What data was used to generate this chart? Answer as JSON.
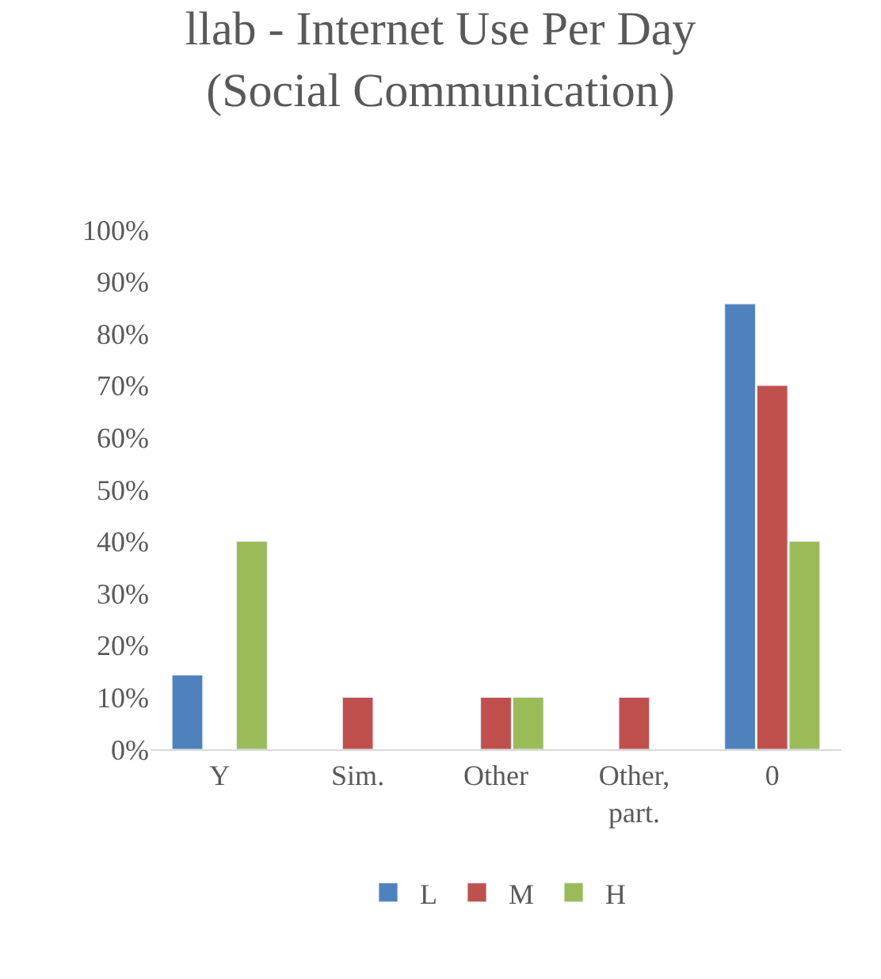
{
  "chart_data": {
    "type": "bar",
    "title": "llab - Internet Use Per Day\n(Social Communication)",
    "categories": [
      "Y",
      "Sim.",
      "Other",
      "Other,\npart.",
      "0"
    ],
    "series": [
      {
        "name": "L",
        "color": "#4f81bd",
        "values": [
          14.3,
          null,
          null,
          null,
          85.7
        ]
      },
      {
        "name": "M",
        "color": "#c0504d",
        "values": [
          null,
          10,
          10,
          10,
          70
        ]
      },
      {
        "name": "H",
        "color": "#9bbb59",
        "values": [
          40,
          null,
          10,
          null,
          40
        ]
      }
    ],
    "ylim": [
      0,
      100
    ],
    "yticks": [
      {
        "value": 0,
        "label": "0%"
      },
      {
        "value": 10,
        "label": "10%"
      },
      {
        "value": 20,
        "label": "20%"
      },
      {
        "value": 30,
        "label": "30%"
      },
      {
        "value": 40,
        "label": "40%"
      },
      {
        "value": 50,
        "label": "50%"
      },
      {
        "value": 60,
        "label": "60%"
      },
      {
        "value": 70,
        "label": "70%"
      },
      {
        "value": 80,
        "label": "80%"
      },
      {
        "value": 90,
        "label": "90%"
      },
      {
        "value": 100,
        "label": "100%"
      }
    ],
    "legend": "bottom"
  }
}
